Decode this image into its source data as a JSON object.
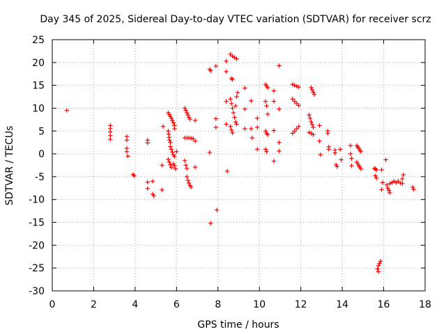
{
  "chart_data": {
    "type": "scatter",
    "title": "Day 345 of 2025, Sidereal Day-to-day VTEC variation (SDTVAR) for receiver scrz",
    "xlabel": "GPS time / hours",
    "ylabel": "SDTVAR / TECUs",
    "xlim": [
      0,
      18
    ],
    "ylim": [
      -30,
      25
    ],
    "xticks": [
      0,
      2,
      4,
      6,
      8,
      10,
      12,
      14,
      16,
      18
    ],
    "yticks": [
      -30,
      -25,
      -20,
      -15,
      -10,
      -5,
      0,
      5,
      10,
      15,
      20,
      25
    ],
    "grid": true,
    "marker": "+",
    "color": "#ff0000",
    "points": [
      [
        0.7,
        9.5
      ],
      [
        2.8,
        6.2
      ],
      [
        2.8,
        5.5
      ],
      [
        2.8,
        4.8
      ],
      [
        2.8,
        4.0
      ],
      [
        2.8,
        3.2
      ],
      [
        3.6,
        3.8
      ],
      [
        3.6,
        3.0
      ],
      [
        3.6,
        1.2
      ],
      [
        3.6,
        0.5
      ],
      [
        3.65,
        -0.5
      ],
      [
        3.9,
        -4.5
      ],
      [
        3.95,
        -4.8
      ],
      [
        4.6,
        3.0
      ],
      [
        4.6,
        2.4
      ],
      [
        4.6,
        -6.2
      ],
      [
        4.6,
        -7.6
      ],
      [
        4.85,
        -6.0
      ],
      [
        4.85,
        -8.8
      ],
      [
        4.9,
        -9.2
      ],
      [
        5.3,
        -7.9
      ],
      [
        5.3,
        -2.5
      ],
      [
        5.35,
        6.0
      ],
      [
        5.6,
        9.0
      ],
      [
        5.65,
        8.6
      ],
      [
        5.7,
        8.2
      ],
      [
        5.75,
        7.8
      ],
      [
        5.8,
        7.3
      ],
      [
        5.85,
        6.8
      ],
      [
        5.9,
        6.2
      ],
      [
        5.9,
        5.5
      ],
      [
        5.6,
        5.0
      ],
      [
        5.62,
        4.3
      ],
      [
        5.64,
        3.6
      ],
      [
        5.66,
        3.0
      ],
      [
        5.7,
        2.5
      ],
      [
        5.7,
        1.6
      ],
      [
        5.75,
        1.0
      ],
      [
        5.8,
        0.4
      ],
      [
        5.85,
        -0.2
      ],
      [
        5.9,
        -0.6
      ],
      [
        5.6,
        -1.2
      ],
      [
        5.65,
        -1.8
      ],
      [
        5.7,
        -2.4
      ],
      [
        5.75,
        -3.0
      ],
      [
        5.85,
        -2.2
      ],
      [
        5.9,
        -2.6
      ],
      [
        5.95,
        -3.3
      ],
      [
        6.0,
        0.5
      ],
      [
        6.4,
        10.0
      ],
      [
        6.45,
        9.5
      ],
      [
        6.5,
        9.0
      ],
      [
        6.55,
        8.5
      ],
      [
        6.6,
        8.0
      ],
      [
        6.65,
        7.6
      ],
      [
        6.4,
        3.5
      ],
      [
        6.5,
        3.5
      ],
      [
        6.6,
        3.5
      ],
      [
        6.7,
        3.4
      ],
      [
        6.8,
        3.3
      ],
      [
        6.4,
        -1.5
      ],
      [
        6.45,
        -2.5
      ],
      [
        6.5,
        -3.2
      ],
      [
        6.5,
        -5.0
      ],
      [
        6.55,
        -5.8
      ],
      [
        6.6,
        -6.4
      ],
      [
        6.65,
        -6.9
      ],
      [
        6.7,
        -7.3
      ],
      [
        6.9,
        7.3
      ],
      [
        6.9,
        2.8
      ],
      [
        6.9,
        -2.9
      ],
      [
        7.6,
        18.5
      ],
      [
        7.65,
        18.2
      ],
      [
        7.6,
        0.3
      ],
      [
        7.65,
        -15.2
      ],
      [
        7.9,
        19.2
      ],
      [
        7.9,
        7.7
      ],
      [
        7.9,
        5.8
      ],
      [
        7.95,
        -12.3
      ],
      [
        8.4,
        20.3
      ],
      [
        8.4,
        18.0
      ],
      [
        8.4,
        11.5
      ],
      [
        8.4,
        6.5
      ],
      [
        8.45,
        -3.8
      ],
      [
        8.6,
        21.8
      ],
      [
        8.7,
        21.4
      ],
      [
        8.8,
        21.1
      ],
      [
        8.9,
        20.8
      ],
      [
        8.65,
        16.5
      ],
      [
        8.7,
        16.3
      ],
      [
        8.6,
        12.0
      ],
      [
        8.65,
        11.0
      ],
      [
        8.7,
        10.0
      ],
      [
        8.75,
        9.0
      ],
      [
        8.8,
        8.0
      ],
      [
        8.85,
        7.0
      ],
      [
        8.9,
        6.5
      ],
      [
        8.6,
        6.0
      ],
      [
        8.65,
        5.2
      ],
      [
        8.7,
        4.6
      ],
      [
        8.9,
        12.5
      ],
      [
        8.95,
        13.4
      ],
      [
        8.85,
        10.5
      ],
      [
        9.3,
        14.4
      ],
      [
        9.3,
        9.8
      ],
      [
        9.3,
        5.5
      ],
      [
        9.6,
        11.6
      ],
      [
        9.6,
        5.5
      ],
      [
        9.65,
        3.5
      ],
      [
        9.9,
        7.8
      ],
      [
        9.9,
        5.8
      ],
      [
        9.9,
        1.0
      ],
      [
        10.3,
        15.2
      ],
      [
        10.35,
        14.8
      ],
      [
        10.4,
        14.5
      ],
      [
        10.3,
        11.5
      ],
      [
        10.35,
        10.5
      ],
      [
        10.4,
        8.7
      ],
      [
        10.3,
        5.0
      ],
      [
        10.35,
        4.5
      ],
      [
        10.4,
        4.2
      ],
      [
        10.3,
        1.0
      ],
      [
        10.35,
        0.5
      ],
      [
        10.7,
        13.8
      ],
      [
        10.7,
        11.5
      ],
      [
        10.7,
        5.1
      ],
      [
        10.7,
        -1.6
      ],
      [
        10.95,
        19.3
      ],
      [
        10.95,
        9.8
      ],
      [
        10.95,
        2.5
      ],
      [
        10.95,
        0.6
      ],
      [
        11.6,
        15.2
      ],
      [
        11.7,
        15.0
      ],
      [
        11.8,
        14.8
      ],
      [
        11.9,
        14.6
      ],
      [
        11.6,
        12.0
      ],
      [
        11.7,
        11.5
      ],
      [
        11.8,
        11.0
      ],
      [
        11.9,
        10.6
      ],
      [
        11.6,
        4.5
      ],
      [
        11.7,
        5.0
      ],
      [
        11.8,
        5.5
      ],
      [
        11.9,
        6.0
      ],
      [
        12.5,
        14.5
      ],
      [
        12.55,
        14.0
      ],
      [
        12.6,
        13.5
      ],
      [
        12.65,
        13.0
      ],
      [
        12.4,
        8.5
      ],
      [
        12.45,
        7.8
      ],
      [
        12.5,
        7.0
      ],
      [
        12.55,
        6.4
      ],
      [
        12.6,
        5.8
      ],
      [
        12.4,
        4.7
      ],
      [
        12.5,
        4.5
      ],
      [
        12.6,
        4.2
      ],
      [
        12.9,
        6.2
      ],
      [
        12.9,
        2.8
      ],
      [
        12.95,
        -0.2
      ],
      [
        13.3,
        5.0
      ],
      [
        13.3,
        4.5
      ],
      [
        13.35,
        1.5
      ],
      [
        13.35,
        1.0
      ],
      [
        13.65,
        0.8
      ],
      [
        13.65,
        0.2
      ],
      [
        13.7,
        -2.4
      ],
      [
        13.75,
        -2.8
      ],
      [
        13.9,
        1.0
      ],
      [
        13.95,
        -1.3
      ],
      [
        14.4,
        1.8
      ],
      [
        14.4,
        0.0
      ],
      [
        14.45,
        -1.0
      ],
      [
        14.45,
        -2.6
      ],
      [
        14.7,
        1.8
      ],
      [
        14.75,
        1.5
      ],
      [
        14.8,
        1.2
      ],
      [
        14.85,
        0.8
      ],
      [
        14.9,
        0.5
      ],
      [
        14.7,
        -1.8
      ],
      [
        14.75,
        -2.2
      ],
      [
        14.8,
        -2.6
      ],
      [
        14.85,
        -2.9
      ],
      [
        14.9,
        -3.3
      ],
      [
        15.55,
        -3.2
      ],
      [
        15.6,
        -3.3
      ],
      [
        15.65,
        -3.5
      ],
      [
        15.6,
        -4.8
      ],
      [
        15.65,
        -5.3
      ],
      [
        15.75,
        -24.5
      ],
      [
        15.8,
        -24.0
      ],
      [
        15.85,
        -23.5
      ],
      [
        15.7,
        -25.2
      ],
      [
        15.75,
        -25.8
      ],
      [
        15.9,
        -3.5
      ],
      [
        15.95,
        -6.3
      ],
      [
        15.9,
        -7.8
      ],
      [
        16.1,
        -1.3
      ],
      [
        16.15,
        -6.8
      ],
      [
        16.2,
        -7.5
      ],
      [
        16.25,
        -8.0
      ],
      [
        16.3,
        -8.5
      ],
      [
        16.3,
        -6.5
      ],
      [
        16.4,
        -6.3
      ],
      [
        16.5,
        -6.0
      ],
      [
        16.6,
        -6.3
      ],
      [
        16.7,
        -6.0
      ],
      [
        16.8,
        -6.4
      ],
      [
        16.9,
        -5.5
      ],
      [
        16.95,
        -4.6
      ],
      [
        16.9,
        -6.5
      ],
      [
        17.4,
        -7.3
      ],
      [
        17.45,
        -7.8
      ]
    ]
  }
}
